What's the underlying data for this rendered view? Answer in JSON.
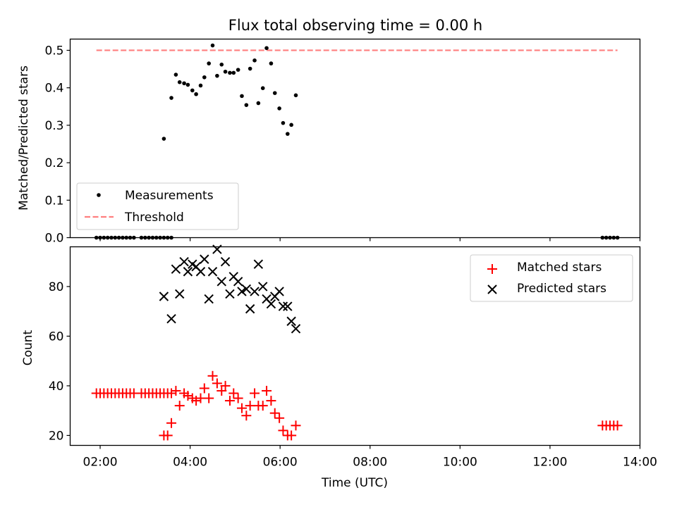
{
  "title": "Flux total observing time = 0.00 h",
  "colors": {
    "measurement": "#000000",
    "threshold": "#ff7f7f",
    "matched": "#ff0000",
    "predicted": "#000000"
  },
  "chart_data": [
    {
      "type": "scatter",
      "panel": "top",
      "ylabel": "Matched/Predicted stars",
      "xlabel": "",
      "xlim": [
        "01:20",
        "14:00"
      ],
      "ylim": [
        0,
        0.53
      ],
      "yticks": [
        "0.0",
        "0.1",
        "0.2",
        "0.3",
        "0.4",
        "0.5"
      ],
      "xticks_shown": false,
      "grid": false,
      "legend_position": "lower-left",
      "series": [
        {
          "name": "Measurements",
          "kind": "points",
          "points": [
            [
              "01:55",
              0
            ],
            [
              "02:00",
              0
            ],
            [
              "02:05",
              0
            ],
            [
              "02:10",
              0
            ],
            [
              "02:15",
              0
            ],
            [
              "02:20",
              0
            ],
            [
              "02:25",
              0
            ],
            [
              "02:30",
              0
            ],
            [
              "02:35",
              0
            ],
            [
              "02:40",
              0
            ],
            [
              "02:45",
              0
            ],
            [
              "02:55",
              0
            ],
            [
              "03:00",
              0
            ],
            [
              "03:05",
              0
            ],
            [
              "03:10",
              0
            ],
            [
              "03:15",
              0
            ],
            [
              "03:20",
              0
            ],
            [
              "03:25",
              0
            ],
            [
              "03:30",
              0
            ],
            [
              "03:35",
              0
            ],
            [
              "03:25",
              0.264
            ],
            [
              "03:35",
              0.373
            ],
            [
              "03:41",
              0.435
            ],
            [
              "03:46",
              0.415
            ],
            [
              "03:52",
              0.412
            ],
            [
              "03:57",
              0.408
            ],
            [
              "04:03",
              0.393
            ],
            [
              "04:08",
              0.383
            ],
            [
              "04:14",
              0.406
            ],
            [
              "04:19",
              0.428
            ],
            [
              "04:25",
              0.465
            ],
            [
              "04:30",
              0.513
            ],
            [
              "04:36",
              0.432
            ],
            [
              "04:42",
              0.462
            ],
            [
              "04:47",
              0.443
            ],
            [
              "04:53",
              0.44
            ],
            [
              "04:58",
              0.44
            ],
            [
              "05:04",
              0.448
            ],
            [
              "05:09",
              0.378
            ],
            [
              "05:15",
              0.354
            ],
            [
              "05:20",
              0.451
            ],
            [
              "05:26",
              0.473
            ],
            [
              "05:31",
              0.359
            ],
            [
              "05:37",
              0.399
            ],
            [
              "05:42",
              0.506
            ],
            [
              "05:48",
              0.465
            ],
            [
              "05:53",
              0.386
            ],
            [
              "05:59",
              0.345
            ],
            [
              "06:04",
              0.306
            ],
            [
              "06:10",
              0.277
            ],
            [
              "06:15",
              0.301
            ],
            [
              "06:21",
              0.38
            ],
            [
              "13:10",
              0
            ],
            [
              "13:15",
              0
            ],
            [
              "13:20",
              0
            ],
            [
              "13:25",
              0
            ],
            [
              "13:30",
              0
            ]
          ]
        },
        {
          "name": "Threshold",
          "kind": "dashed-line",
          "points": [
            [
              "01:55",
              0.5
            ],
            [
              "13:30",
              0.5
            ]
          ]
        }
      ]
    },
    {
      "type": "scatter",
      "panel": "bottom",
      "ylabel": "Count",
      "xlabel": "Time (UTC)",
      "xlim": [
        "01:20",
        "14:00"
      ],
      "ylim": [
        16,
        96
      ],
      "yticks": [
        "20",
        "40",
        "60",
        "80"
      ],
      "xticks": [
        "02:00",
        "04:00",
        "06:00",
        "08:00",
        "10:00",
        "12:00",
        "14:00"
      ],
      "grid": false,
      "legend_position": "top-right",
      "series": [
        {
          "name": "Matched stars",
          "marker": "+",
          "points": [
            [
              "01:55",
              37
            ],
            [
              "02:00",
              37
            ],
            [
              "02:05",
              37
            ],
            [
              "02:10",
              37
            ],
            [
              "02:15",
              37
            ],
            [
              "02:20",
              37
            ],
            [
              "02:25",
              37
            ],
            [
              "02:30",
              37
            ],
            [
              "02:35",
              37
            ],
            [
              "02:40",
              37
            ],
            [
              "02:45",
              37
            ],
            [
              "02:55",
              37
            ],
            [
              "03:00",
              37
            ],
            [
              "03:05",
              37
            ],
            [
              "03:10",
              37
            ],
            [
              "03:15",
              37
            ],
            [
              "03:20",
              37
            ],
            [
              "03:25",
              37
            ],
            [
              "03:30",
              37
            ],
            [
              "03:35",
              37
            ],
            [
              "03:25",
              20
            ],
            [
              "03:30",
              20
            ],
            [
              "03:35",
              25
            ],
            [
              "03:41",
              38
            ],
            [
              "03:46",
              32
            ],
            [
              "03:52",
              37
            ],
            [
              "03:57",
              36
            ],
            [
              "04:03",
              35
            ],
            [
              "04:08",
              34
            ],
            [
              "04:14",
              35
            ],
            [
              "04:19",
              39
            ],
            [
              "04:25",
              35
            ],
            [
              "04:30",
              44
            ],
            [
              "04:36",
              41
            ],
            [
              "04:42",
              38
            ],
            [
              "04:47",
              40
            ],
            [
              "04:53",
              34
            ],
            [
              "04:58",
              37
            ],
            [
              "05:04",
              35
            ],
            [
              "05:09",
              31
            ],
            [
              "05:15",
              28
            ],
            [
              "05:20",
              32
            ],
            [
              "05:26",
              37
            ],
            [
              "05:31",
              32
            ],
            [
              "05:37",
              32
            ],
            [
              "05:42",
              38
            ],
            [
              "05:48",
              34
            ],
            [
              "05:53",
              29
            ],
            [
              "05:59",
              27
            ],
            [
              "06:04",
              22
            ],
            [
              "06:10",
              20
            ],
            [
              "06:15",
              20
            ],
            [
              "06:21",
              24
            ],
            [
              "13:10",
              24
            ],
            [
              "13:15",
              24
            ],
            [
              "13:20",
              24
            ],
            [
              "13:25",
              24
            ],
            [
              "13:30",
              24
            ]
          ]
        },
        {
          "name": "Predicted stars",
          "marker": "x",
          "points": [
            [
              "03:25",
              76
            ],
            [
              "03:35",
              67
            ],
            [
              "03:41",
              87
            ],
            [
              "03:46",
              77
            ],
            [
              "03:52",
              90
            ],
            [
              "03:57",
              86
            ],
            [
              "04:03",
              89
            ],
            [
              "04:08",
              88
            ],
            [
              "04:14",
              86
            ],
            [
              "04:19",
              91
            ],
            [
              "04:25",
              75
            ],
            [
              "04:30",
              86
            ],
            [
              "04:36",
              95
            ],
            [
              "04:42",
              82
            ],
            [
              "04:47",
              90
            ],
            [
              "04:53",
              77
            ],
            [
              "04:58",
              84
            ],
            [
              "05:04",
              82
            ],
            [
              "05:09",
              78
            ],
            [
              "05:15",
              79
            ],
            [
              "05:20",
              71
            ],
            [
              "05:26",
              78
            ],
            [
              "05:31",
              89
            ],
            [
              "05:37",
              80
            ],
            [
              "05:42",
              75
            ],
            [
              "05:48",
              73
            ],
            [
              "05:53",
              76
            ],
            [
              "05:59",
              78
            ],
            [
              "06:04",
              72
            ],
            [
              "06:10",
              72
            ],
            [
              "06:15",
              66
            ],
            [
              "06:21",
              63
            ]
          ]
        }
      ]
    }
  ]
}
